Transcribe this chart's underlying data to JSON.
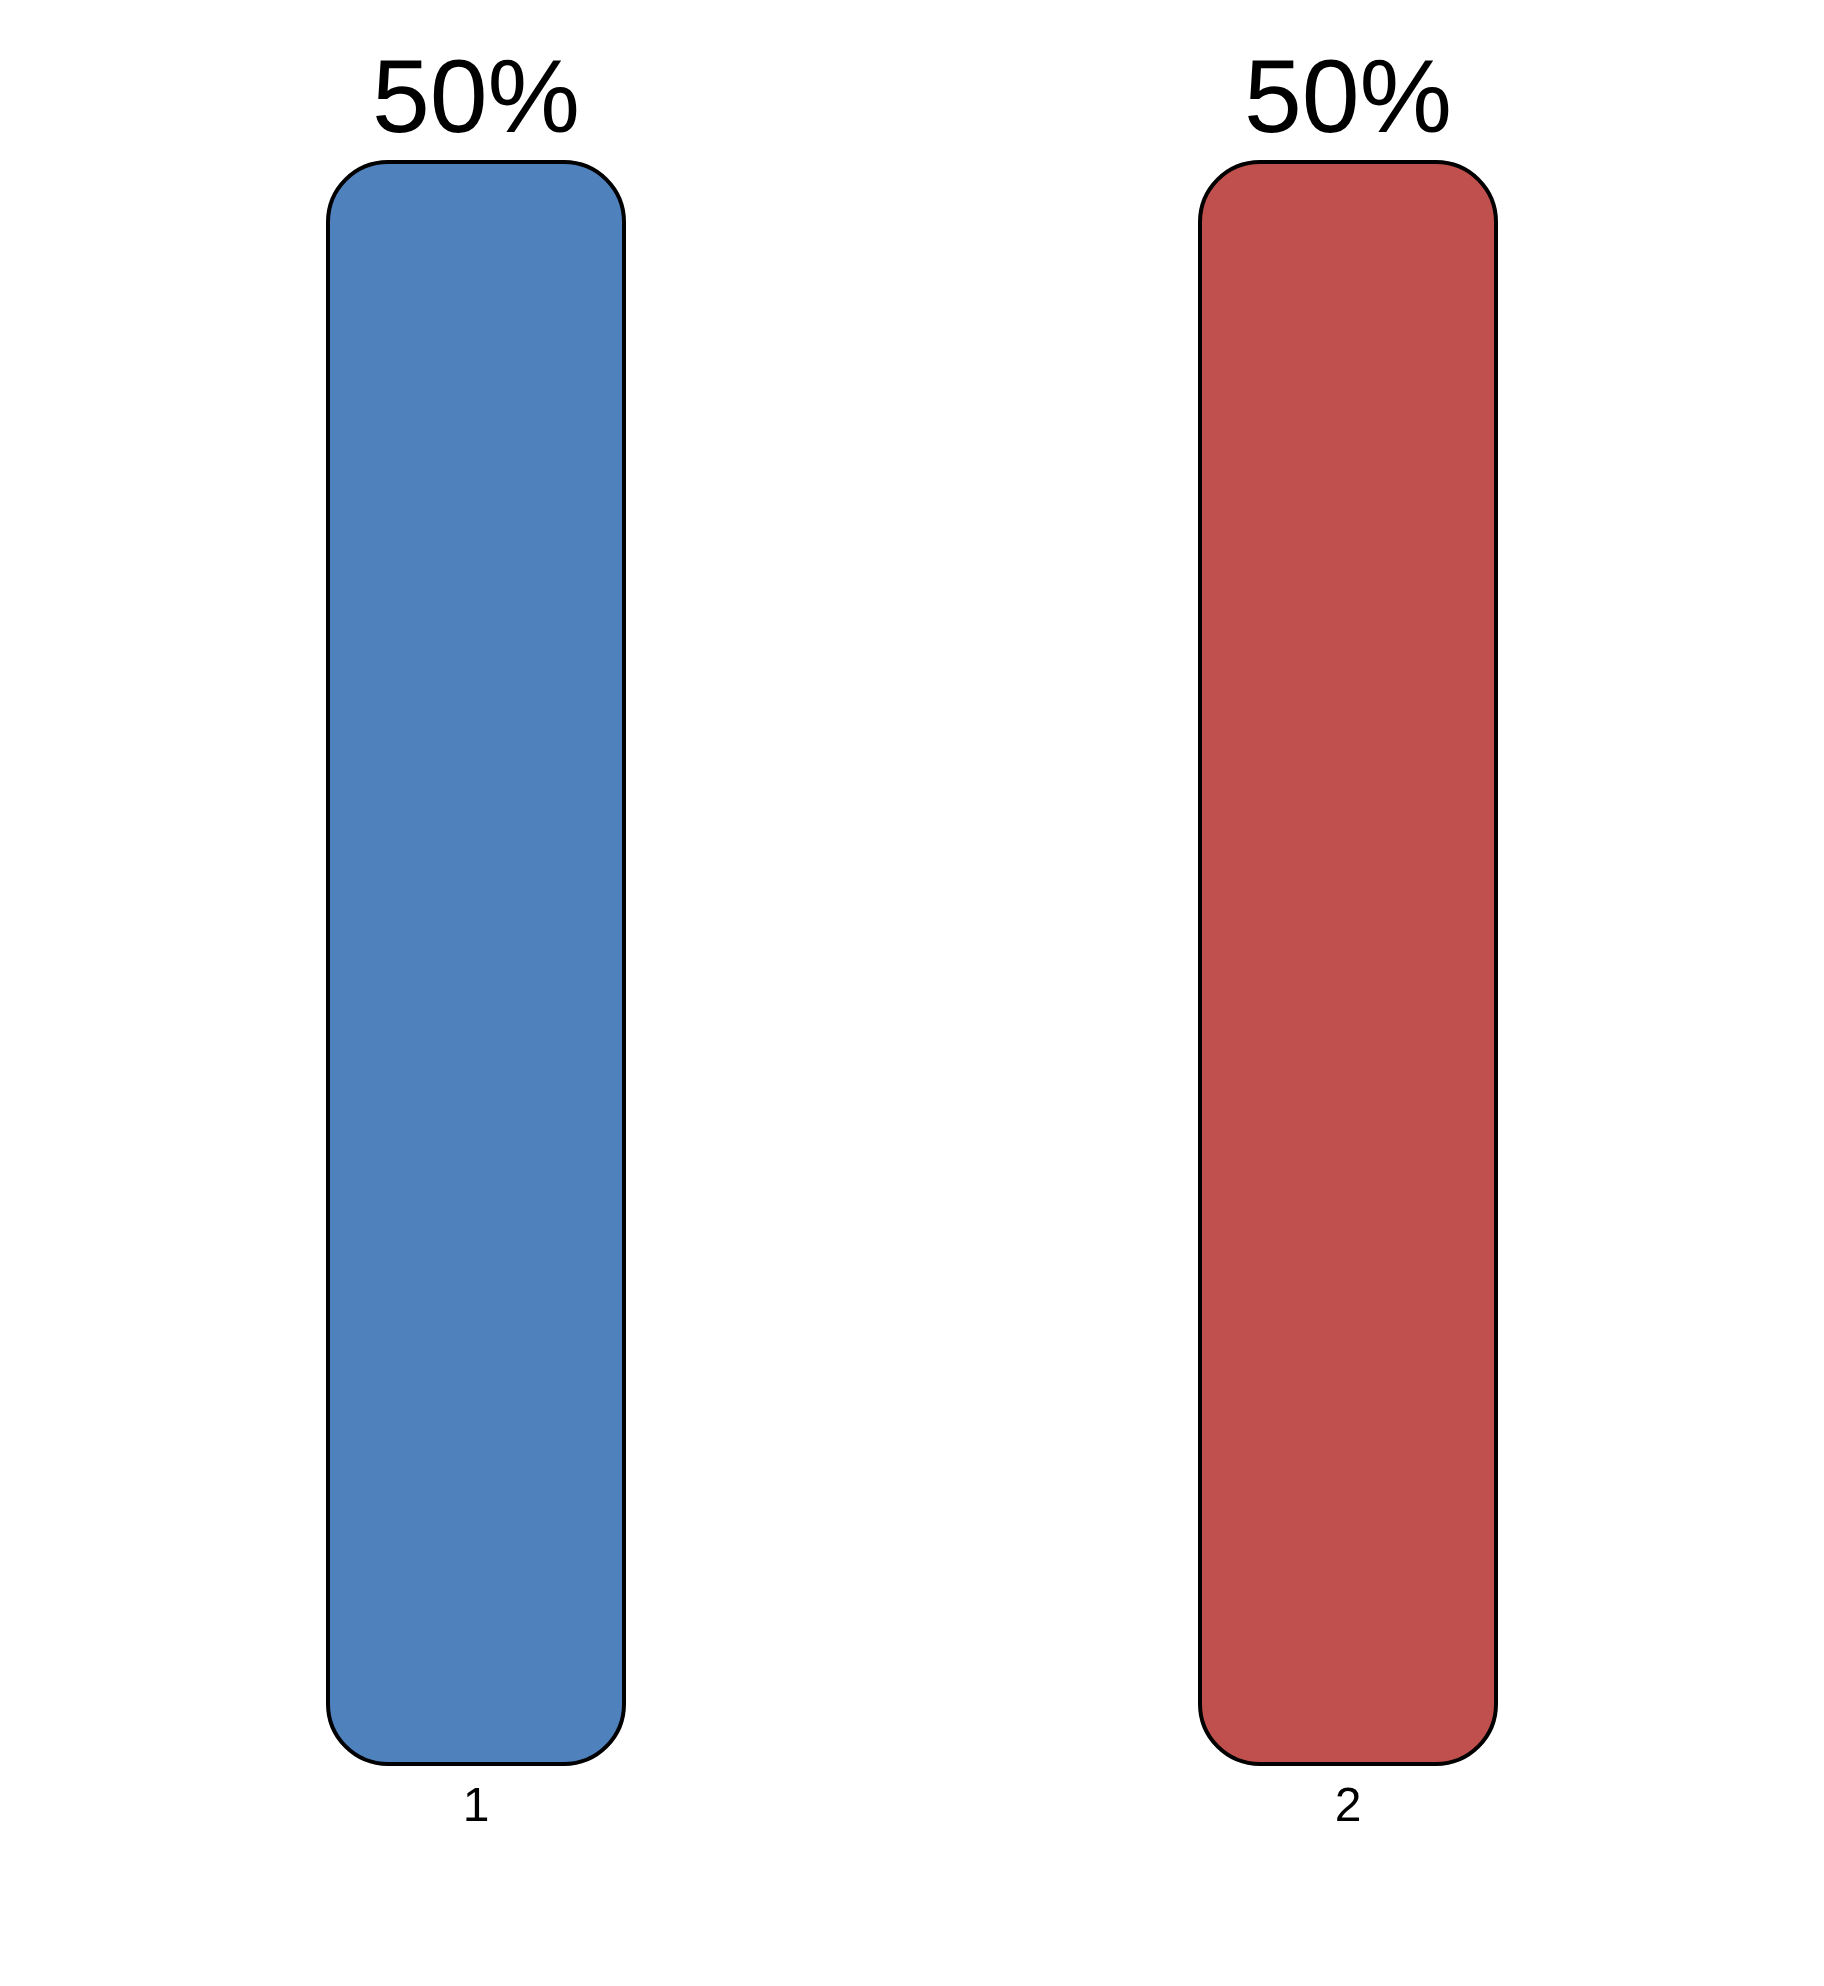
{
  "chart_data": {
    "type": "bar",
    "categories": [
      "1",
      "2"
    ],
    "values": [
      50,
      50
    ],
    "colors": [
      "#4f81bd",
      "#c0504d"
    ],
    "value_labels": [
      "50%",
      "50%"
    ]
  }
}
